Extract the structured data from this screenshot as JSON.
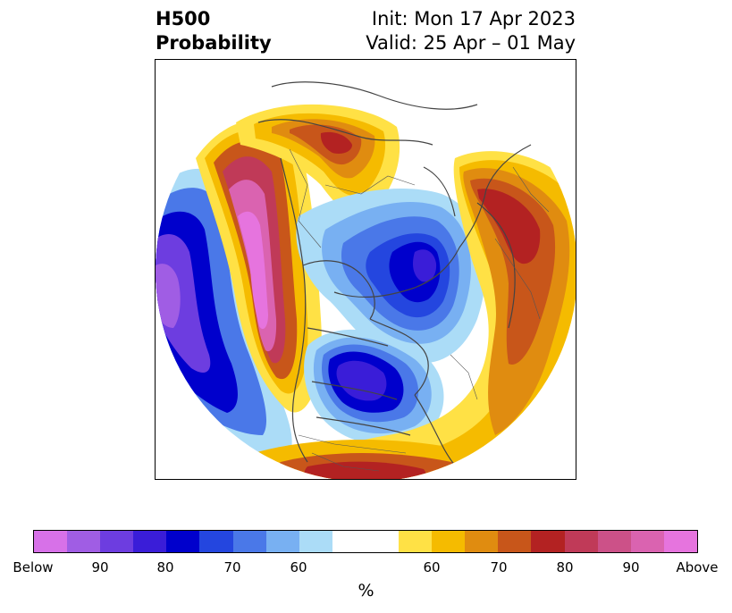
{
  "title": {
    "left_line1": "H500",
    "left_line2": "Probability",
    "right_line1": "Init: Mon 17 Apr 2023",
    "right_line2": "Valid: 25 Apr – 01 May"
  },
  "colorbar": {
    "colors": [
      "#d771e8",
      "#a05de4",
      "#6d3de0",
      "#3a1dd8",
      "#0000cc",
      "#2446df",
      "#4a78e8",
      "#78b0f2",
      "#abdcf7",
      "#ffffff",
      "#ffffff",
      "#ffe145",
      "#f5bb00",
      "#e08c10",
      "#c8561a",
      "#b32222",
      "#c03a58",
      "#cc5188",
      "#da63b0",
      "#e674de"
    ],
    "tick_labels": [
      "Below",
      "90",
      "80",
      "70",
      "60",
      "60",
      "70",
      "80",
      "90",
      "Above"
    ],
    "unit": "%"
  }
}
